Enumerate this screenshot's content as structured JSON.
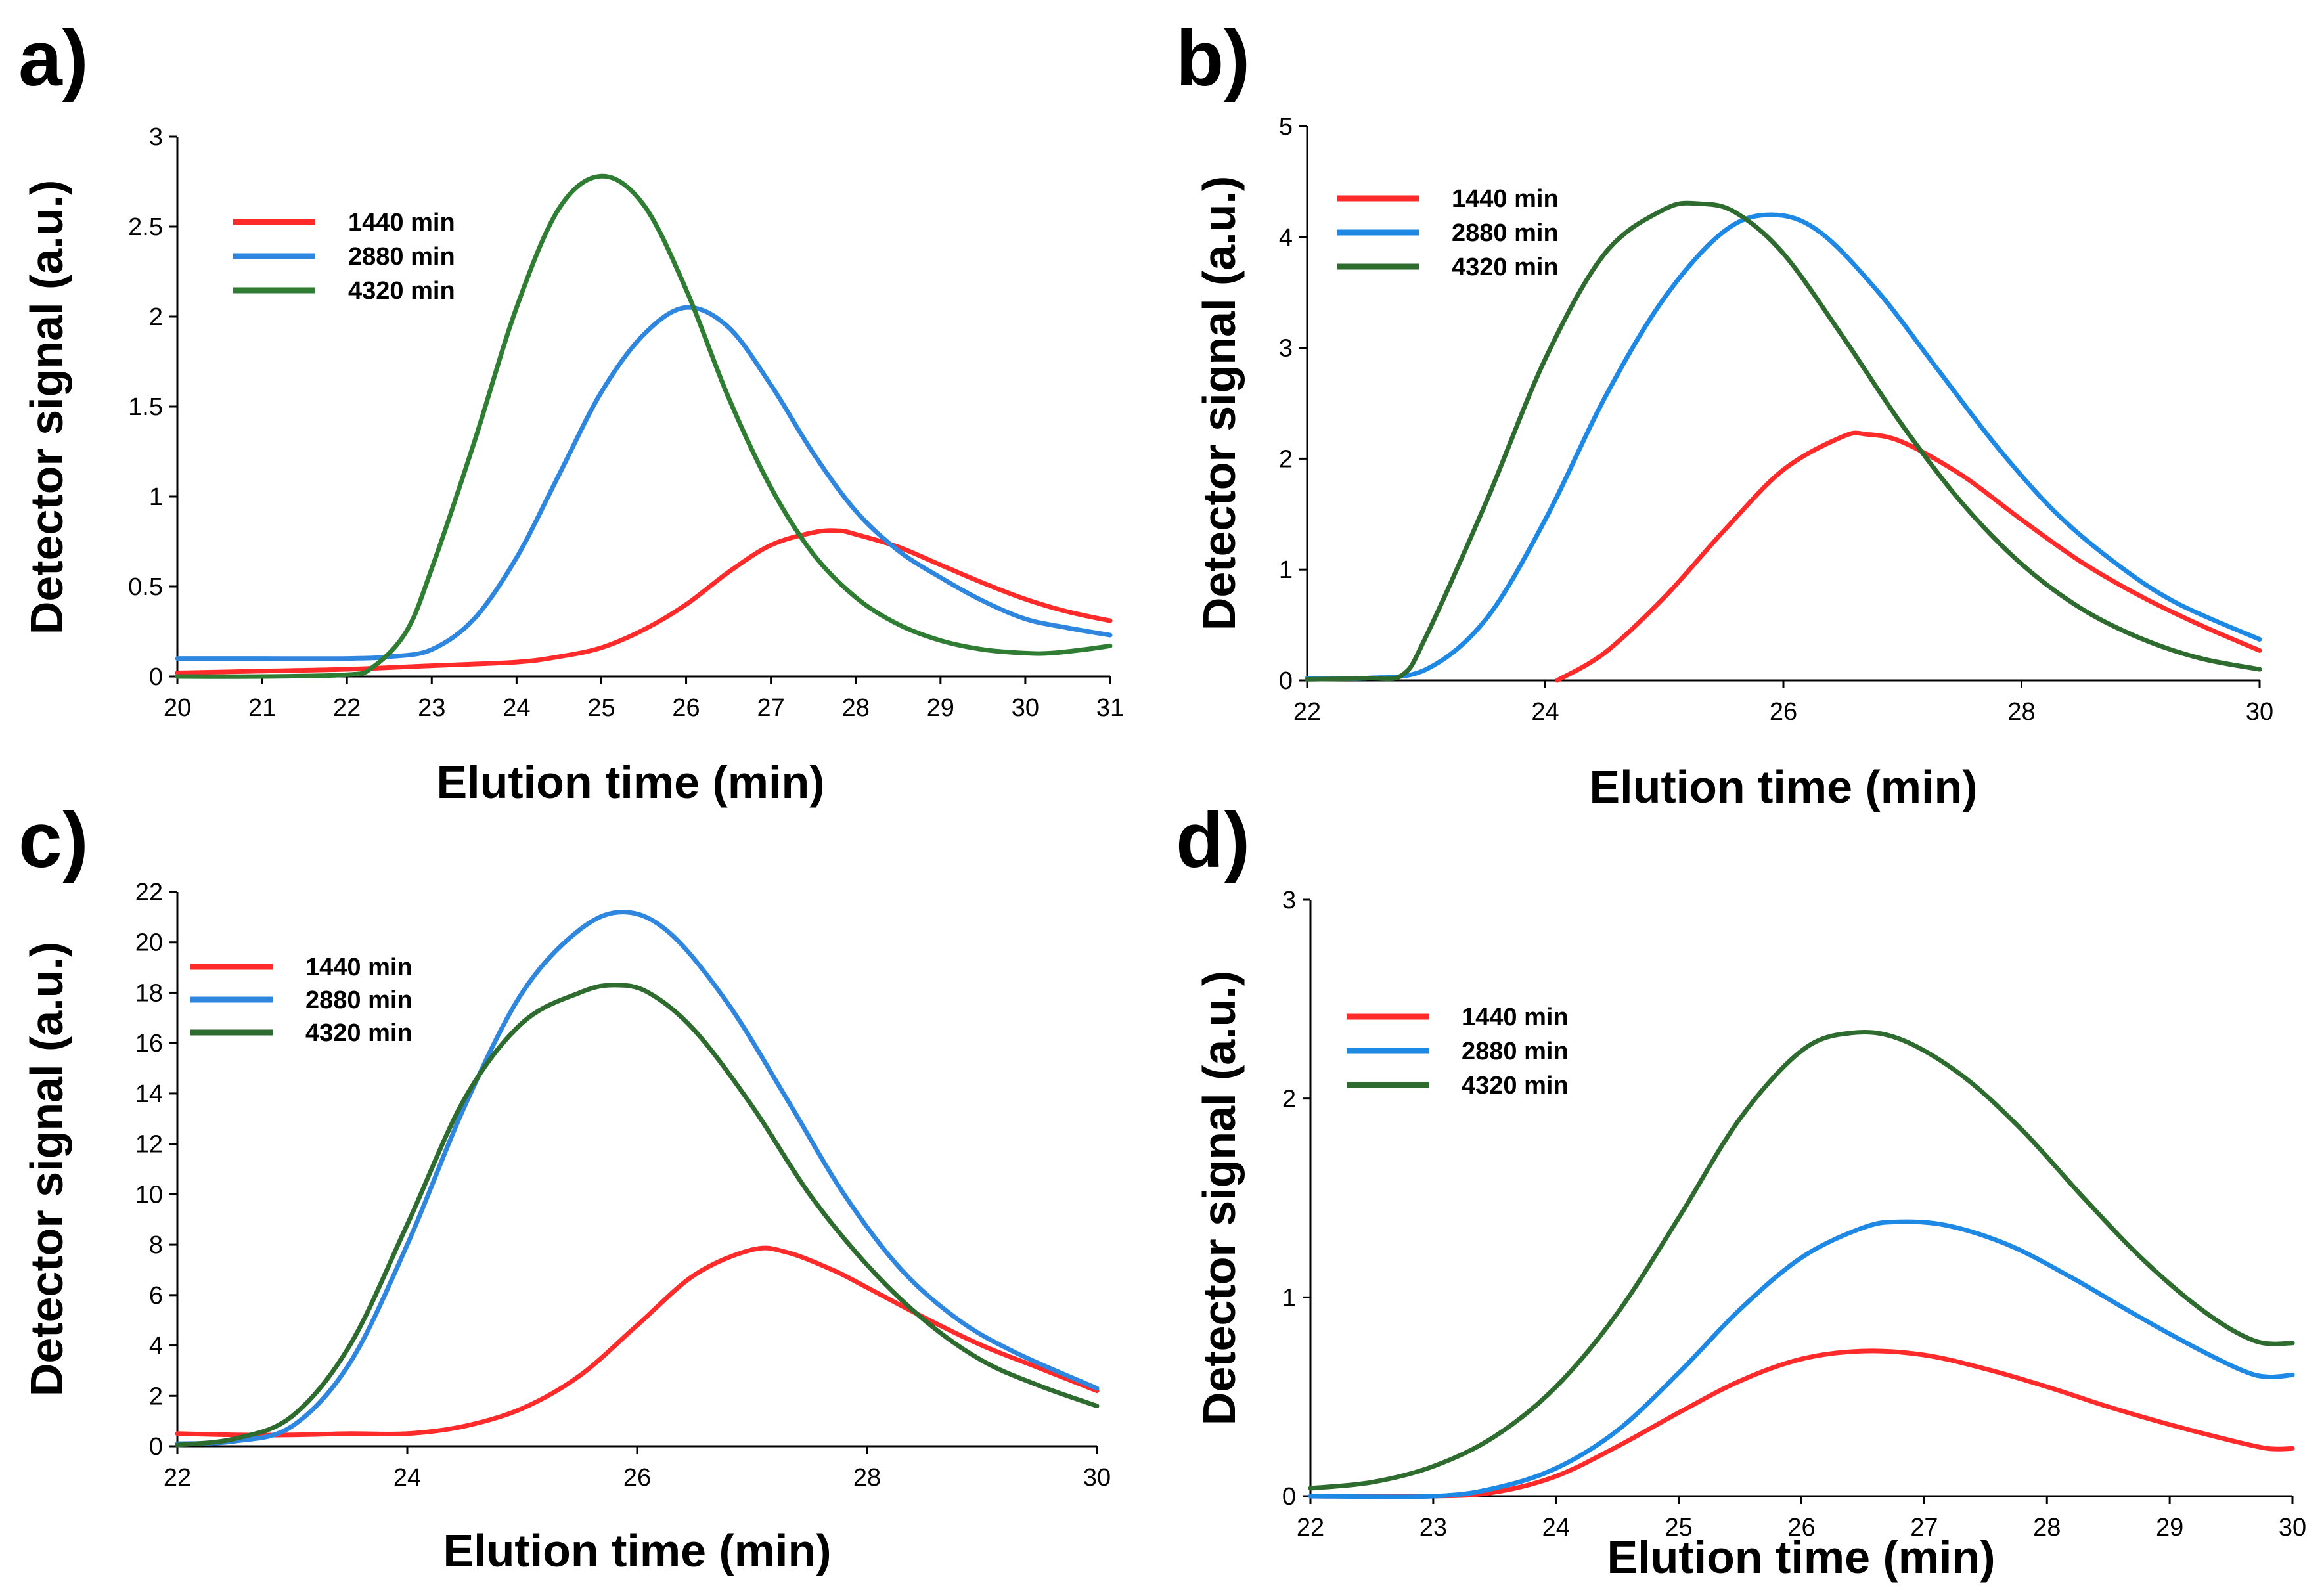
{
  "chart_data": [
    {
      "panel": "a)",
      "type": "line",
      "xlabel": "Elution time (min)",
      "ylabel": "Detector signal (a.u.)",
      "xlim": [
        20,
        31
      ],
      "ylim": [
        0,
        3
      ],
      "xticks": [
        20,
        21,
        22,
        23,
        24,
        25,
        26,
        27,
        28,
        29,
        30,
        31
      ],
      "yticks": [
        0,
        0.5,
        1,
        1.5,
        2,
        2.5,
        3
      ],
      "legend_position": "top-left",
      "series": [
        {
          "name": "1440 min",
          "color": "#ff2a2a",
          "x": [
            20,
            21,
            22,
            23,
            24,
            24.5,
            25,
            25.5,
            26,
            26.5,
            27,
            27.5,
            27.8,
            28,
            28.5,
            29,
            29.5,
            30,
            30.5,
            31
          ],
          "y": [
            0.02,
            0.03,
            0.04,
            0.06,
            0.08,
            0.11,
            0.16,
            0.26,
            0.4,
            0.58,
            0.73,
            0.8,
            0.81,
            0.79,
            0.72,
            0.62,
            0.52,
            0.43,
            0.36,
            0.31
          ]
        },
        {
          "name": "2880 min",
          "color": "#2e86de",
          "x": [
            20,
            21,
            22,
            22.5,
            23,
            23.5,
            24,
            24.5,
            25,
            25.5,
            26,
            26.5,
            27,
            27.5,
            28,
            28.5,
            29,
            29.5,
            30,
            30.5,
            31
          ],
          "y": [
            0.1,
            0.1,
            0.1,
            0.11,
            0.15,
            0.32,
            0.66,
            1.12,
            1.58,
            1.9,
            2.05,
            1.94,
            1.62,
            1.24,
            0.92,
            0.7,
            0.55,
            0.42,
            0.32,
            0.27,
            0.23
          ]
        },
        {
          "name": "4320 min",
          "color": "#2e7d32",
          "x": [
            20,
            21,
            22,
            22.3,
            22.7,
            23,
            23.5,
            24,
            24.5,
            25,
            25.5,
            26,
            26.5,
            27,
            27.5,
            28,
            28.5,
            29,
            29.5,
            30,
            30.3,
            30.7,
            31
          ],
          "y": [
            0.0,
            0.0,
            0.01,
            0.05,
            0.25,
            0.6,
            1.3,
            2.05,
            2.6,
            2.78,
            2.62,
            2.15,
            1.55,
            1.05,
            0.68,
            0.44,
            0.29,
            0.2,
            0.15,
            0.13,
            0.13,
            0.15,
            0.17
          ]
        }
      ]
    },
    {
      "panel": "b)",
      "type": "line",
      "xlabel": "Elution time (min)",
      "ylabel": "Detector signal (a.u.)",
      "xlim": [
        22,
        30
      ],
      "ylim": [
        0,
        5
      ],
      "xticks": [
        22,
        24,
        26,
        28,
        30
      ],
      "yticks": [
        0,
        1,
        2,
        3,
        4,
        5
      ],
      "legend_position": "top-left",
      "series": [
        {
          "name": "1440 min",
          "color": "#ff2a2a",
          "x": [
            24.1,
            24.5,
            25,
            25.5,
            26,
            26.5,
            26.7,
            27,
            27.5,
            28,
            28.5,
            29,
            29.5,
            30
          ],
          "y": [
            0.0,
            0.25,
            0.75,
            1.35,
            1.9,
            2.2,
            2.22,
            2.15,
            1.85,
            1.45,
            1.07,
            0.76,
            0.5,
            0.27
          ]
        },
        {
          "name": "2880 min",
          "color": "#1e88e5",
          "x": [
            22,
            22.5,
            23,
            23.5,
            24,
            24.5,
            25,
            25.5,
            25.9,
            26.3,
            26.8,
            27.3,
            27.8,
            28.3,
            28.8,
            29.3,
            30
          ],
          "y": [
            0.02,
            0.02,
            0.1,
            0.55,
            1.45,
            2.55,
            3.45,
            4.05,
            4.2,
            4.05,
            3.5,
            2.8,
            2.1,
            1.5,
            1.05,
            0.7,
            0.37
          ]
        },
        {
          "name": "4320 min",
          "color": "#2e6b2e",
          "x": [
            22,
            22.5,
            22.8,
            23,
            23.5,
            24,
            24.5,
            25,
            25.3,
            25.6,
            26,
            26.5,
            27,
            27.5,
            28,
            28.5,
            29,
            29.5,
            30
          ],
          "y": [
            0.01,
            0.02,
            0.05,
            0.4,
            1.6,
            2.9,
            3.85,
            4.25,
            4.3,
            4.22,
            3.85,
            3.1,
            2.3,
            1.6,
            1.05,
            0.65,
            0.38,
            0.2,
            0.1
          ]
        }
      ]
    },
    {
      "panel": "c)",
      "type": "line",
      "xlabel": "Elution time (min)",
      "ylabel": "Detector signal (a.u.)",
      "xlim": [
        22,
        30
      ],
      "ylim": [
        0,
        22
      ],
      "xticks": [
        22,
        24,
        26,
        28,
        30
      ],
      "yticks": [
        0,
        2,
        4,
        6,
        8,
        10,
        12,
        14,
        16,
        18,
        20,
        22
      ],
      "legend_position": "top-left",
      "series": [
        {
          "name": "1440 min",
          "color": "#ff2a2a",
          "x": [
            22,
            22.5,
            23,
            23.5,
            24,
            24.5,
            25,
            25.5,
            26,
            26.5,
            27,
            27.3,
            27.7,
            28,
            28.5,
            29,
            29.5,
            30
          ],
          "y": [
            0.5,
            0.45,
            0.45,
            0.5,
            0.5,
            0.8,
            1.5,
            2.8,
            4.8,
            6.8,
            7.8,
            7.7,
            7.0,
            6.3,
            5.1,
            4.0,
            3.1,
            2.2
          ]
        },
        {
          "name": "2880 min",
          "color": "#2e86de",
          "x": [
            22,
            22.5,
            23,
            23.5,
            24,
            24.5,
            25,
            25.5,
            25.9,
            26.3,
            26.8,
            27.3,
            27.8,
            28.3,
            28.8,
            29.3,
            30
          ],
          "y": [
            0.1,
            0.2,
            0.8,
            3.3,
            8.0,
            13.5,
            18.0,
            20.5,
            21.2,
            20.3,
            17.5,
            13.8,
            10.0,
            7.0,
            5.0,
            3.7,
            2.3
          ]
        },
        {
          "name": "4320 min",
          "color": "#2e6b2e",
          "x": [
            22,
            22.5,
            23,
            23.5,
            24,
            24.5,
            25,
            25.5,
            25.8,
            26.1,
            26.5,
            27,
            27.5,
            28,
            28.5,
            29,
            29.5,
            30
          ],
          "y": [
            0.05,
            0.3,
            1.2,
            4.0,
            8.8,
            13.8,
            16.8,
            18.0,
            18.3,
            18.0,
            16.5,
            13.5,
            10.0,
            7.2,
            5.0,
            3.4,
            2.4,
            1.6
          ]
        }
      ]
    },
    {
      "panel": "d)",
      "type": "line",
      "xlabel": "Elution time (min)",
      "ylabel": "Detector signal (a.u.)",
      "xlim": [
        22,
        30
      ],
      "ylim": [
        0,
        3
      ],
      "xticks": [
        22,
        23,
        24,
        25,
        26,
        27,
        28,
        29,
        30
      ],
      "yticks": [
        0,
        1,
        2,
        3
      ],
      "legend_position": "top-left",
      "series": [
        {
          "name": "1440 min",
          "color": "#ff2a2a",
          "x": [
            22,
            23,
            23.5,
            24,
            24.5,
            25,
            25.5,
            26,
            26.5,
            27,
            27.5,
            28,
            28.5,
            29,
            29.5,
            29.8,
            30
          ],
          "y": [
            0.0,
            0.0,
            0.02,
            0.1,
            0.25,
            0.42,
            0.58,
            0.69,
            0.73,
            0.71,
            0.64,
            0.55,
            0.45,
            0.36,
            0.28,
            0.24,
            0.24
          ]
        },
        {
          "name": "2880 min",
          "color": "#1e88e5",
          "x": [
            22,
            23,
            23.5,
            24,
            24.5,
            25,
            25.5,
            26,
            26.5,
            26.8,
            27.2,
            27.7,
            28.2,
            28.7,
            29.2,
            29.6,
            29.8,
            30
          ],
          "y": [
            0.0,
            0.0,
            0.04,
            0.14,
            0.33,
            0.62,
            0.94,
            1.2,
            1.35,
            1.38,
            1.36,
            1.26,
            1.1,
            0.92,
            0.75,
            0.63,
            0.6,
            0.61
          ]
        },
        {
          "name": "4320 min",
          "color": "#2e6b2e",
          "x": [
            22,
            22.5,
            23,
            23.5,
            24,
            24.5,
            25,
            25.5,
            26,
            26.4,
            26.8,
            27.3,
            27.8,
            28.3,
            28.8,
            29.3,
            29.7,
            30
          ],
          "y": [
            0.04,
            0.07,
            0.15,
            0.3,
            0.55,
            0.92,
            1.4,
            1.9,
            2.24,
            2.33,
            2.3,
            2.12,
            1.84,
            1.5,
            1.18,
            0.92,
            0.78,
            0.77
          ]
        }
      ]
    }
  ]
}
